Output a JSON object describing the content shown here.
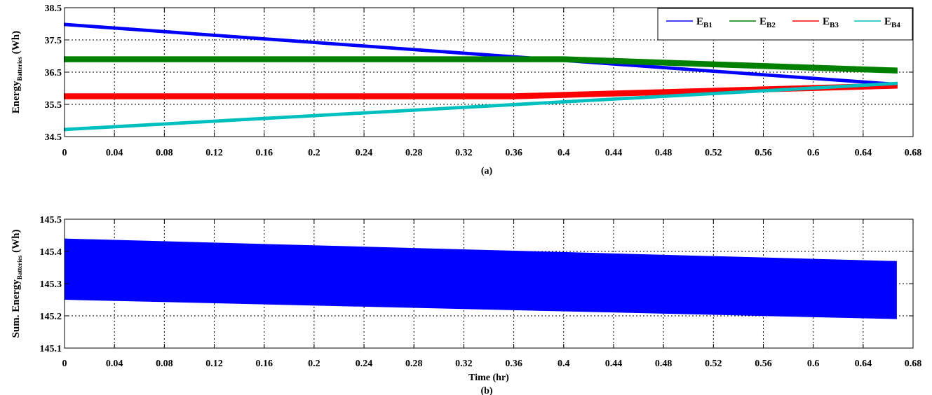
{
  "chart_data": [
    {
      "type": "line",
      "panel_label": "(a)",
      "title": "",
      "xlabel": "",
      "ylabel": {
        "base": "Energy",
        "sub": "Batteries",
        "unit": "(Wh)"
      },
      "xlim": [
        0,
        0.68
      ],
      "ylim": [
        34.5,
        38.5
      ],
      "xticks": [
        "0",
        "0.04",
        "0.08",
        "0.12",
        "0.16",
        "0.2",
        "0.24",
        "0.28",
        "0.32",
        "0.36",
        "0.4",
        "0.44",
        "0.48",
        "0.52",
        "0.56",
        "0.6",
        "0.64",
        "0.68"
      ],
      "yticks": [
        "34.5",
        "35.5",
        "36.5",
        "37.5",
        "38.5"
      ],
      "grid": true,
      "legend_position": "top-right",
      "series": [
        {
          "name": "E",
          "sub": "B1",
          "color": "#0000ff",
          "x": [
            0,
            0.667
          ],
          "y": [
            37.98,
            36.12
          ],
          "band": 0.06
        },
        {
          "name": "E",
          "sub": "B2",
          "color": "#008000",
          "x": [
            0,
            0.4,
            0.667
          ],
          "y": [
            36.9,
            36.9,
            36.55
          ],
          "band": 0.14
        },
        {
          "name": "E",
          "sub": "B3",
          "color": "#ff0000",
          "x": [
            0,
            0.36,
            0.667
          ],
          "y": [
            35.75,
            35.75,
            36.08
          ],
          "band": 0.14
        },
        {
          "name": "E",
          "sub": "B4",
          "color": "#00bfbf",
          "x": [
            0,
            0.667
          ],
          "y": [
            34.72,
            36.15
          ],
          "band": 0.06
        }
      ]
    },
    {
      "type": "area",
      "panel_label": "(b)",
      "title": "",
      "xlabel": "Time (hr)",
      "ylabel": {
        "base": "Sum. Energy",
        "sub": "Batteries",
        "unit": "(Wh)"
      },
      "xlim": [
        0,
        0.68
      ],
      "ylim": [
        145.1,
        145.5
      ],
      "xticks": [
        "0",
        "0.04",
        "0.08",
        "0.12",
        "0.16",
        "0.2",
        "0.24",
        "0.28",
        "0.32",
        "0.36",
        "0.4",
        "0.44",
        "0.48",
        "0.52",
        "0.56",
        "0.6",
        "0.64",
        "0.68"
      ],
      "yticks": [
        "145.1",
        "145.2",
        "145.3",
        "145.4",
        "145.5"
      ],
      "grid": true,
      "series": [
        {
          "color": "#0000ff",
          "x": [
            0,
            0.667
          ],
          "upper": [
            145.44,
            145.37
          ],
          "lower": [
            145.25,
            145.19
          ]
        }
      ]
    }
  ]
}
